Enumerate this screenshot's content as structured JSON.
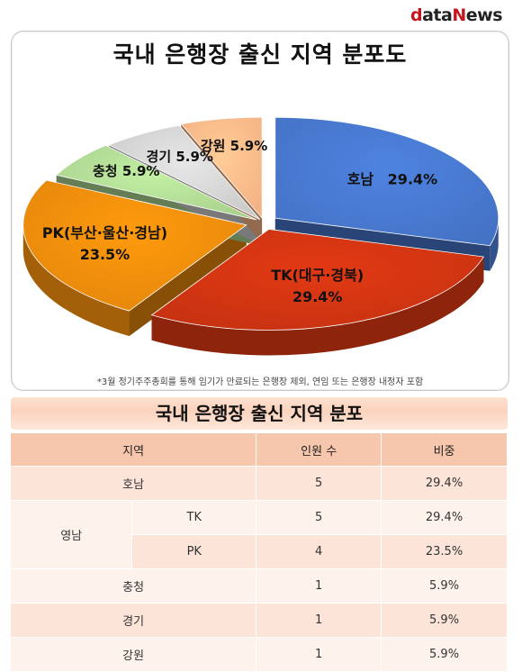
{
  "logo": {
    "d": "d",
    "ata": "ata",
    "n": "N",
    "ews": "ews"
  },
  "chart_data": {
    "type": "pie",
    "title": "국내 은행장 출신 지역 분포도",
    "slices": [
      {
        "label": "호남",
        "value": 29.4,
        "display": "29.4%",
        "color": "#4472c4"
      },
      {
        "label": "TK(대구·경북)",
        "value": 29.4,
        "display": "29.4%",
        "color": "#c53211"
      },
      {
        "label": "PK(부산·울산·경남)",
        "value": 23.5,
        "display": "23.5%",
        "color": "#e3860b"
      },
      {
        "label": "충청",
        "value": 5.9,
        "display": "5.9%",
        "color": "#a9d08e"
      },
      {
        "label": "경기",
        "value": 5.9,
        "display": "5.9%",
        "color": "#c9c9c9"
      },
      {
        "label": "강원",
        "value": 5.9,
        "display": "5.9%",
        "color": "#f4b183"
      }
    ],
    "footnote": "*3월 정기주주총회를 통해 임기가 만료되는 은행장 제외, 연임 또는 은행장 내정자 포함"
  },
  "table": {
    "title": "국내 은행장 출신 지역 분포",
    "headers": [
      "지역",
      "인원 수",
      "비중"
    ],
    "rows": [
      {
        "region": "호남",
        "count": "5",
        "share": "29.4%"
      },
      {
        "group": "영남",
        "region": "TK",
        "count": "5",
        "share": "29.4%"
      },
      {
        "group": "영남",
        "region": "PK",
        "count": "4",
        "share": "23.5%"
      },
      {
        "region": "충청",
        "count": "1",
        "share": "5.9%"
      },
      {
        "region": "경기",
        "count": "1",
        "share": "5.9%"
      },
      {
        "region": "강원",
        "count": "1",
        "share": "5.9%"
      }
    ]
  }
}
